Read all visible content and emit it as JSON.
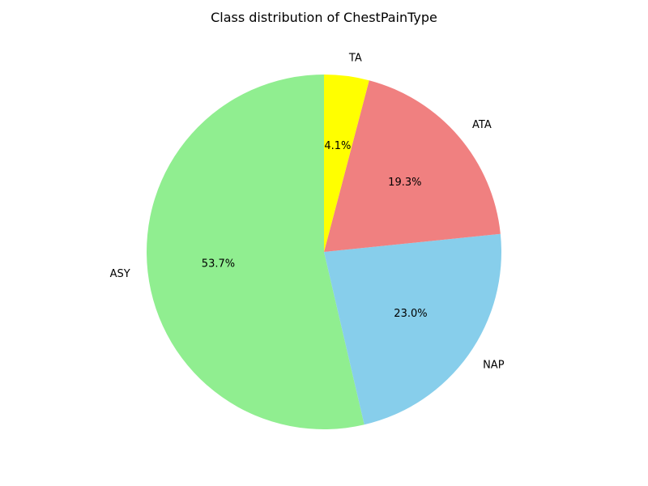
{
  "chart_data": {
    "type": "pie",
    "title": "Class distribution of ChestPainType",
    "categories": [
      "ASY",
      "NAP",
      "ATA",
      "TA"
    ],
    "values": [
      53.7,
      23.0,
      19.3,
      4.1
    ],
    "percent_labels": [
      "53.7%",
      "23.0%",
      "19.3%",
      "4.1%"
    ],
    "colors": [
      "#90ee90",
      "#87ceeb",
      "#f08080",
      "#ffff00"
    ],
    "start_angle_deg": 90,
    "direction": "counterclockwise",
    "legend": "none"
  }
}
